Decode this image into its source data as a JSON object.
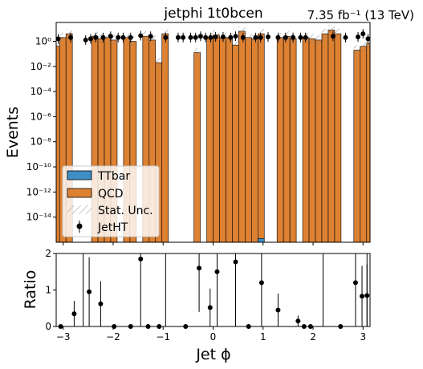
{
  "chart_data": [
    {
      "type": "bar",
      "title": "jetphi  1t0bcen",
      "lumi_label": "7.35 fb⁻¹ (13 TeV)",
      "ylabel": "Events",
      "yscale": "log",
      "ylim_exp": [
        -16,
        1.5
      ],
      "ytick_labels": [
        "10⁰",
        "10⁻²",
        "10⁻⁴",
        "10⁻⁶",
        "10⁻⁸",
        "10⁻¹⁰",
        "10⁻¹²",
        "10⁻¹⁴"
      ],
      "ytick_exps": [
        0,
        -2,
        -4,
        -6,
        -8,
        -10,
        -12,
        -14
      ],
      "legend": {
        "position": "lower-left",
        "entries": [
          "TTbar",
          "QCD",
          "Stat. Unc.",
          "JetHT"
        ]
      },
      "colors": {
        "ttbar": "#3f8fc4",
        "qcd": "#dd8133",
        "data": "#000000"
      },
      "bin_edges_range": [
        -3.2,
        3.2
      ],
      "n_bins": 50,
      "qcd_log10": [
        -0.4,
        0.3,
        0.6,
        -99,
        -99,
        -99,
        0.4,
        0.2,
        0.3,
        0.1,
        -99,
        0.3,
        0.0,
        -99,
        0.4,
        0.1,
        -1.7,
        0.6,
        -99,
        -99,
        -99,
        -99,
        -0.9,
        -99,
        0.3,
        0.5,
        0.3,
        0.3,
        -0.3,
        0.8,
        0.3,
        0.2,
        0.6,
        -99,
        -99,
        0.3,
        0.4,
        0.2,
        -99,
        0.3,
        0.2,
        0.1,
        0.6,
        0.9,
        0.6,
        -99,
        -99,
        -0.7,
        -0.4,
        -0.2
      ],
      "ttbar_log10_bin": {
        "bin_index": 32,
        "value_exp": -15.7
      },
      "data_points": [
        {
          "x": -3.1,
          "y_exp": 0.2
        },
        {
          "x": -2.85,
          "y_exp": 0.3
        },
        {
          "x": -2.55,
          "y_exp": 0.1
        },
        {
          "x": -2.45,
          "y_exp": 0.2
        },
        {
          "x": -2.35,
          "y_exp": 0.3
        },
        {
          "x": -2.2,
          "y_exp": 0.3
        },
        {
          "x": -2.05,
          "y_exp": 0.4
        },
        {
          "x": -1.9,
          "y_exp": 0.3
        },
        {
          "x": -1.8,
          "y_exp": 0.3
        },
        {
          "x": -1.65,
          "y_exp": 0.3
        },
        {
          "x": -1.45,
          "y_exp": 0.45
        },
        {
          "x": -1.25,
          "y_exp": 0.4
        },
        {
          "x": -0.95,
          "y_exp": 0.3
        },
        {
          "x": -0.7,
          "y_exp": 0.3
        },
        {
          "x": -0.6,
          "y_exp": 0.3
        },
        {
          "x": -0.45,
          "y_exp": 0.3
        },
        {
          "x": -0.35,
          "y_exp": 0.3
        },
        {
          "x": -0.25,
          "y_exp": 0.4
        },
        {
          "x": -0.15,
          "y_exp": 0.3
        },
        {
          "x": -0.05,
          "y_exp": 0.3
        },
        {
          "x": 0.05,
          "y_exp": 0.35
        },
        {
          "x": 0.2,
          "y_exp": 0.35
        },
        {
          "x": 0.35,
          "y_exp": 0.3
        },
        {
          "x": 0.45,
          "y_exp": 0.4
        },
        {
          "x": 0.6,
          "y_exp": 0.3
        },
        {
          "x": 0.85,
          "y_exp": 0.3
        },
        {
          "x": 0.95,
          "y_exp": 0.3
        },
        {
          "x": 1.1,
          "y_exp": 0.35
        },
        {
          "x": 1.3,
          "y_exp": 0.3
        },
        {
          "x": 1.45,
          "y_exp": 0.3
        },
        {
          "x": 1.6,
          "y_exp": 0.3
        },
        {
          "x": 1.75,
          "y_exp": 0.3
        },
        {
          "x": 1.85,
          "y_exp": 0.3
        },
        {
          "x": 2.4,
          "y_exp": 0.4
        },
        {
          "x": 2.65,
          "y_exp": 0.3
        },
        {
          "x": 2.9,
          "y_exp": 0.35
        },
        {
          "x": 3.0,
          "y_exp": 0.6
        },
        {
          "x": 3.1,
          "y_exp": 0.2
        }
      ],
      "xlim": [
        -3.14,
        3.14
      ]
    },
    {
      "type": "scatter",
      "ylabel": "Ratio",
      "xlabel": "Jet ϕ",
      "xlim": [
        -3.14,
        3.14
      ],
      "ylim": [
        0,
        2
      ],
      "xtick_labels": [
        "−3",
        "−2",
        "−1",
        "0",
        "1",
        "2",
        "3"
      ],
      "xtick_values": [
        -3,
        -2,
        -1,
        0,
        1,
        2,
        3
      ],
      "ytick_labels": [
        "0",
        "1",
        "2"
      ],
      "ytick_values": [
        0,
        1,
        2
      ],
      "points": [
        {
          "x": -3.05,
          "y": 0.0,
          "err": 0.0
        },
        {
          "x": -2.78,
          "y": 0.35,
          "err": 0.35
        },
        {
          "x": -2.48,
          "y": 0.95,
          "err": 0.95
        },
        {
          "x": -2.25,
          "y": 0.62,
          "err": 0.62
        },
        {
          "x": -1.98,
          "y": 0.0,
          "err": 0.0
        },
        {
          "x": -1.65,
          "y": 0.0,
          "err": 0.0
        },
        {
          "x": -1.45,
          "y": 1.85,
          "err": 1.85
        },
        {
          "x": -1.3,
          "y": 0.0,
          "err": 0.0
        },
        {
          "x": -1.08,
          "y": 0.0,
          "err": 0.0
        },
        {
          "x": -0.55,
          "y": 0.0,
          "err": 0.0
        },
        {
          "x": -0.28,
          "y": 1.6,
          "err": 1.2
        },
        {
          "x": -0.06,
          "y": 0.52,
          "err": 0.52
        },
        {
          "x": 0.08,
          "y": 1.5,
          "err": 1.5
        },
        {
          "x": 0.45,
          "y": 1.77,
          "err": 1.77
        },
        {
          "x": 0.71,
          "y": 0.0,
          "err": 0.0
        },
        {
          "x": 0.97,
          "y": 1.2,
          "err": 1.2
        },
        {
          "x": 1.3,
          "y": 0.45,
          "err": 0.45
        },
        {
          "x": 1.7,
          "y": 0.15,
          "err": 0.15
        },
        {
          "x": 1.82,
          "y": 0.0,
          "err": 0.0
        },
        {
          "x": 1.95,
          "y": 0.0,
          "err": 0.0
        },
        {
          "x": 2.55,
          "y": 0.0,
          "err": 0.0
        },
        {
          "x": 2.85,
          "y": 1.2,
          "err": 1.2
        },
        {
          "x": 2.98,
          "y": 0.83,
          "err": 0.83
        },
        {
          "x": 3.08,
          "y": 0.85,
          "err": 0.85
        }
      ],
      "vertical_lines_x": [
        -2.6,
        -0.95,
        2.2,
        3.08
      ]
    }
  ]
}
